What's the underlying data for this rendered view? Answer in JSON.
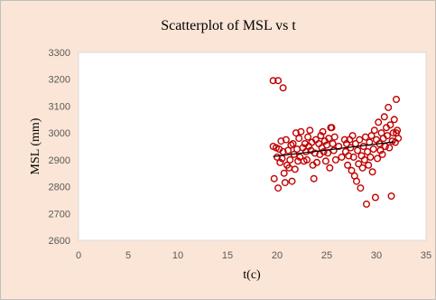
{
  "chart_data": {
    "type": "scatter",
    "title": "Scatterplot of MSL vs t",
    "xlabel": "t(c)",
    "ylabel": "MSL (mm)",
    "xlim": [
      0,
      35
    ],
    "ylim": [
      2600,
      3300
    ],
    "xticks": [
      0,
      5,
      10,
      15,
      20,
      25,
      30,
      35
    ],
    "yticks": [
      2600,
      2700,
      2800,
      2900,
      3000,
      3100,
      3200,
      3300
    ],
    "grid": false,
    "legend": "none",
    "marker_color": "#c00000",
    "trendline": {
      "x": [
        19.6,
        31.8
      ],
      "y": [
        2912,
        2967
      ],
      "color": "#000000"
    },
    "points": [
      [
        19.6,
        3195
      ],
      [
        20.1,
        3195
      ],
      [
        20.6,
        3168
      ],
      [
        19.6,
        2950
      ],
      [
        19.7,
        2830
      ],
      [
        19.9,
        2945
      ],
      [
        20.0,
        2910
      ],
      [
        20.1,
        2795
      ],
      [
        20.2,
        2940
      ],
      [
        20.3,
        2890
      ],
      [
        20.4,
        2970
      ],
      [
        20.5,
        2905
      ],
      [
        20.6,
        2930
      ],
      [
        20.7,
        2850
      ],
      [
        20.8,
        2815
      ],
      [
        20.9,
        2975
      ],
      [
        21.0,
        2880
      ],
      [
        21.1,
        2935
      ],
      [
        21.2,
        2870
      ],
      [
        21.3,
        2900
      ],
      [
        21.4,
        2955
      ],
      [
        21.5,
        2820
      ],
      [
        21.6,
        2960
      ],
      [
        21.7,
        2920
      ],
      [
        21.8,
        2865
      ],
      [
        21.9,
        3000
      ],
      [
        22.0,
        2940
      ],
      [
        22.1,
        2895
      ],
      [
        22.2,
        2980
      ],
      [
        22.3,
        2910
      ],
      [
        22.4,
        3005
      ],
      [
        22.6,
        2945
      ],
      [
        22.7,
        2895
      ],
      [
        22.8,
        2960
      ],
      [
        22.9,
        2930
      ],
      [
        23.0,
        2900
      ],
      [
        23.1,
        2985
      ],
      [
        23.2,
        2950
      ],
      [
        23.3,
        3010
      ],
      [
        23.4,
        2935
      ],
      [
        23.5,
        2965
      ],
      [
        23.6,
        2880
      ],
      [
        23.7,
        2830
      ],
      [
        23.8,
        2925
      ],
      [
        23.9,
        2975
      ],
      [
        24.0,
        2890
      ],
      [
        24.2,
        2960
      ],
      [
        24.3,
        2920
      ],
      [
        24.4,
        2990
      ],
      [
        24.5,
        2945
      ],
      [
        24.6,
        3005
      ],
      [
        24.7,
        2930
      ],
      [
        24.8,
        2970
      ],
      [
        24.9,
        2895
      ],
      [
        25.0,
        2955
      ],
      [
        25.1,
        2925
      ],
      [
        25.2,
        2980
      ],
      [
        25.3,
        2870
      ],
      [
        25.4,
        3020
      ],
      [
        25.5,
        3020
      ],
      [
        25.6,
        2960
      ],
      [
        25.7,
        2935
      ],
      [
        25.8,
        2985
      ],
      [
        25.9,
        2900
      ],
      [
        26.2,
        2950
      ],
      [
        26.5,
        2910
      ],
      [
        26.8,
        2975
      ],
      [
        26.9,
        2930
      ],
      [
        27.0,
        2960
      ],
      [
        27.1,
        2880
      ],
      [
        27.2,
        2915
      ],
      [
        27.3,
        2975
      ],
      [
        27.4,
        2945
      ],
      [
        27.5,
        2860
      ],
      [
        27.6,
        2990
      ],
      [
        27.7,
        2910
      ],
      [
        27.8,
        2840
      ],
      [
        27.9,
        2960
      ],
      [
        28.0,
        2820
      ],
      [
        28.1,
        2935
      ],
      [
        28.2,
        2885
      ],
      [
        28.3,
        2975
      ],
      [
        28.4,
        2795
      ],
      [
        28.5,
        2915
      ],
      [
        28.6,
        2870
      ],
      [
        28.7,
        2950
      ],
      [
        28.8,
        2900
      ],
      [
        28.9,
        2985
      ],
      [
        29.0,
        2735
      ],
      [
        29.1,
        2930
      ],
      [
        29.2,
        2880
      ],
      [
        29.3,
        2965
      ],
      [
        29.4,
        2910
      ],
      [
        29.5,
        2990
      ],
      [
        29.6,
        2855
      ],
      [
        29.7,
        2940
      ],
      [
        29.8,
        3010
      ],
      [
        29.9,
        2760
      ],
      [
        30.0,
        2975
      ],
      [
        30.1,
        2905
      ],
      [
        30.2,
        3040
      ],
      [
        30.3,
        2960
      ],
      [
        30.4,
        2935
      ],
      [
        30.5,
        3000
      ],
      [
        30.6,
        2920
      ],
      [
        30.7,
        2980
      ],
      [
        30.8,
        3060
      ],
      [
        30.9,
        2950
      ],
      [
        31.0,
        3020
      ],
      [
        31.1,
        2990
      ],
      [
        31.2,
        3095
      ],
      [
        31.3,
        2945
      ],
      [
        31.4,
        3030
      ],
      [
        31.5,
        2765
      ],
      [
        31.6,
        2970
      ],
      [
        31.7,
        3000
      ],
      [
        31.8,
        3050
      ],
      [
        31.9,
        2965
      ],
      [
        32.0,
        3125
      ],
      [
        32.1,
        3010
      ],
      [
        32.2,
        2980
      ],
      [
        32.0,
        3000
      ]
    ]
  }
}
